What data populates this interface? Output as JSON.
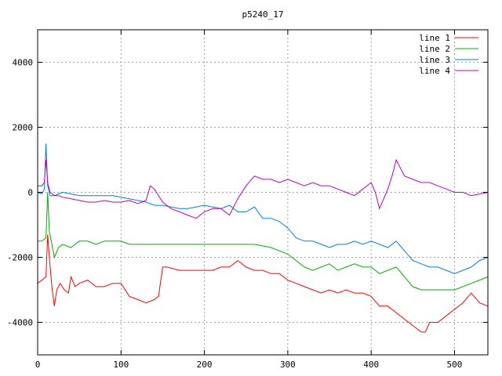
{
  "chart_data": {
    "type": "line",
    "title": "p5240_17",
    "xlabel": "",
    "ylabel": "",
    "xlim": [
      0,
      540
    ],
    "ylim": [
      -5000,
      5000
    ],
    "xticks": [
      0,
      100,
      200,
      300,
      400,
      500
    ],
    "yticks": [
      -4000,
      -2000,
      0,
      2000,
      4000
    ],
    "grid": true,
    "legend_position": "top-right",
    "series": [
      {
        "name": "line 1",
        "color": "#ff0000",
        "x": [
          0,
          5,
          10,
          12,
          14,
          17,
          20,
          23,
          27,
          32,
          37,
          40,
          45,
          50,
          60,
          70,
          80,
          90,
          100,
          110,
          120,
          130,
          140,
          145,
          150,
          155,
          170,
          190,
          210,
          220,
          230,
          240,
          250,
          260,
          270,
          280,
          290,
          300,
          310,
          320,
          330,
          340,
          350,
          360,
          370,
          380,
          390,
          400,
          410,
          420,
          430,
          440,
          450,
          460,
          465,
          470,
          480,
          490,
          500,
          510,
          520,
          530,
          540
        ],
        "y": [
          -2800,
          -2700,
          -2600,
          -1300,
          -2000,
          -2900,
          -3500,
          -3000,
          -2800,
          -3000,
          -3100,
          -2600,
          -2900,
          -2800,
          -2700,
          -2900,
          -2900,
          -2800,
          -2800,
          -3200,
          -3300,
          -3400,
          -3300,
          -3200,
          -2300,
          -2300,
          -2400,
          -2400,
          -2400,
          -2300,
          -2300,
          -2100,
          -2300,
          -2400,
          -2400,
          -2500,
          -2500,
          -2700,
          -2800,
          -2900,
          -3000,
          -3100,
          -3000,
          -3100,
          -3000,
          -3100,
          -3100,
          -3200,
          -3500,
          -3500,
          -3700,
          -3900,
          -4100,
          -4300,
          -4300,
          -4000,
          -4000,
          -3800,
          -3600,
          -3400,
          -3100,
          -3400,
          -3500
        ]
      },
      {
        "name": "line 2",
        "color": "#00b000",
        "x": [
          0,
          5,
          10,
          12,
          14,
          17,
          20,
          25,
          30,
          40,
          50,
          60,
          70,
          80,
          90,
          100,
          110,
          120,
          140,
          160,
          180,
          200,
          220,
          240,
          260,
          280,
          300,
          310,
          320,
          330,
          340,
          350,
          360,
          370,
          380,
          390,
          400,
          410,
          420,
          430,
          440,
          450,
          460,
          470,
          480,
          490,
          500,
          510,
          520,
          530,
          540
        ],
        "y": [
          -1500,
          -1500,
          -1400,
          0,
          -1200,
          -1600,
          -2000,
          -1700,
          -1600,
          -1700,
          -1500,
          -1500,
          -1600,
          -1500,
          -1500,
          -1500,
          -1600,
          -1600,
          -1600,
          -1600,
          -1600,
          -1600,
          -1600,
          -1600,
          -1600,
          -1700,
          -1900,
          -2100,
          -2300,
          -2400,
          -2300,
          -2200,
          -2400,
          -2300,
          -2200,
          -2300,
          -2300,
          -2500,
          -2400,
          -2300,
          -2600,
          -2900,
          -3000,
          -3000,
          -3000,
          -3000,
          -3000,
          -2900,
          -2800,
          -2700,
          -2600
        ]
      },
      {
        "name": "line 3",
        "color": "#0080e0",
        "x": [
          0,
          5,
          8,
          10,
          12,
          15,
          20,
          25,
          30,
          40,
          50,
          60,
          70,
          80,
          90,
          100,
          110,
          120,
          130,
          140,
          150,
          160,
          170,
          180,
          190,
          200,
          210,
          220,
          230,
          240,
          250,
          260,
          270,
          280,
          290,
          300,
          310,
          320,
          330,
          340,
          350,
          360,
          370,
          380,
          390,
          400,
          410,
          420,
          430,
          440,
          450,
          460,
          470,
          480,
          490,
          500,
          510,
          520,
          530,
          540
        ],
        "y": [
          0,
          -50,
          100,
          1500,
          200,
          -100,
          -100,
          -50,
          0,
          -50,
          -100,
          -100,
          -100,
          -100,
          -100,
          -150,
          -200,
          -250,
          -300,
          -400,
          -400,
          -450,
          -500,
          -500,
          -450,
          -400,
          -450,
          -500,
          -400,
          -600,
          -600,
          -450,
          -800,
          -800,
          -900,
          -1100,
          -1400,
          -1500,
          -1500,
          -1600,
          -1700,
          -1600,
          -1600,
          -1500,
          -1600,
          -1500,
          -1600,
          -1700,
          -1500,
          -1800,
          -2100,
          -2200,
          -2300,
          -2300,
          -2400,
          -2500,
          -2400,
          -2300,
          -2100,
          -2000
        ]
      },
      {
        "name": "line 4",
        "color": "#c000c0",
        "x": [
          0,
          5,
          8,
          10,
          12,
          15,
          20,
          25,
          30,
          40,
          50,
          60,
          70,
          80,
          90,
          100,
          110,
          120,
          130,
          135,
          140,
          150,
          160,
          170,
          180,
          190,
          200,
          210,
          220,
          230,
          240,
          250,
          260,
          270,
          280,
          290,
          300,
          310,
          320,
          330,
          340,
          350,
          360,
          370,
          380,
          390,
          400,
          405,
          410,
          420,
          425,
          430,
          440,
          450,
          460,
          470,
          480,
          490,
          500,
          510,
          520,
          530,
          540
        ],
        "y": [
          200,
          200,
          300,
          1000,
          300,
          0,
          -100,
          -100,
          -150,
          -200,
          -250,
          -300,
          -300,
          -250,
          -300,
          -300,
          -250,
          -350,
          -250,
          200,
          100,
          -300,
          -500,
          -600,
          -700,
          -800,
          -600,
          -500,
          -500,
          -700,
          -200,
          200,
          500,
          400,
          400,
          300,
          400,
          300,
          200,
          300,
          200,
          200,
          100,
          0,
          -100,
          100,
          300,
          0,
          -500,
          100,
          500,
          1000,
          500,
          400,
          300,
          300,
          200,
          100,
          0,
          0,
          -100,
          -50,
          0
        ]
      }
    ]
  }
}
